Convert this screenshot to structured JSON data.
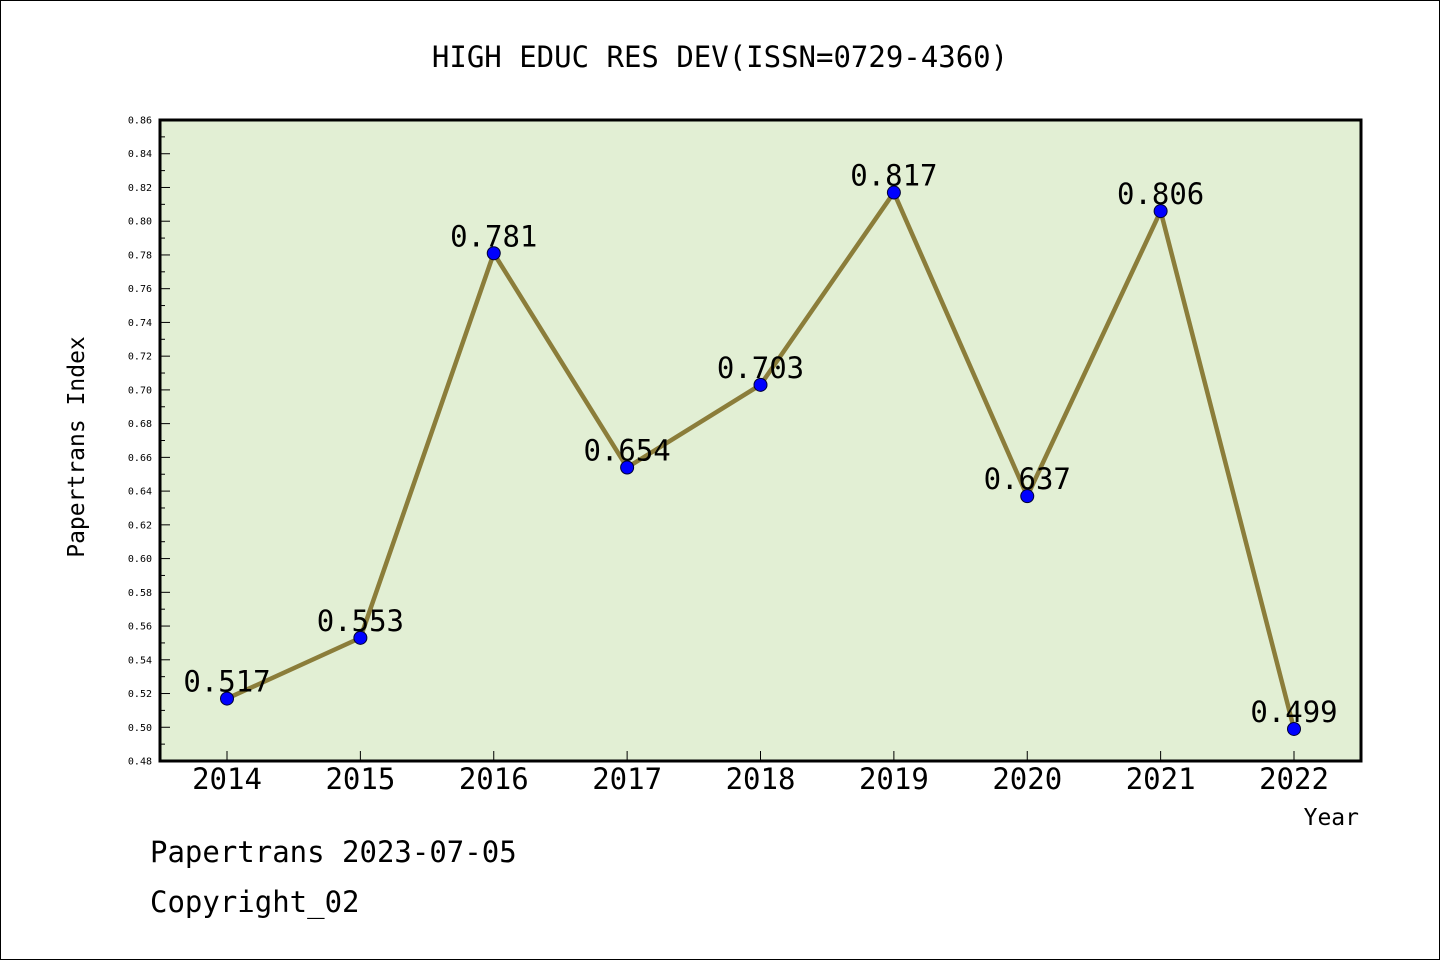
{
  "chart_data": {
    "type": "line",
    "title": "HIGH EDUC RES DEV(ISSN=0729-4360)",
    "xlabel": "Year",
    "ylabel": "Papertrans Index",
    "categories": [
      "2014",
      "2015",
      "2016",
      "2017",
      "2018",
      "2019",
      "2020",
      "2021",
      "2022"
    ],
    "series": [
      {
        "values": [
          0.517,
          0.553,
          0.781,
          0.654,
          0.703,
          0.817,
          0.637,
          0.806,
          0.499
        ],
        "labels": [
          "0.517",
          "0.553",
          "0.781",
          "0.654",
          "0.703",
          "0.817",
          "0.637",
          "0.806",
          "0.499"
        ]
      }
    ],
    "ylim": [
      0.48,
      0.86
    ],
    "yticks": [
      "0.48",
      "0.50",
      "0.52",
      "0.54",
      "0.56",
      "0.58",
      "0.60",
      "0.62",
      "0.64",
      "0.66",
      "0.68",
      "0.70",
      "0.72",
      "0.74",
      "0.76",
      "0.78",
      "0.80",
      "0.82",
      "0.84",
      "0.86"
    ],
    "grid": false,
    "colors": {
      "plot_background": "#e2efd4",
      "line": "#8b7d3a",
      "marker": "#0000ff"
    }
  },
  "footer": {
    "date_line": "Papertrans 2023-07-05",
    "copyright": "Copyright_02"
  }
}
